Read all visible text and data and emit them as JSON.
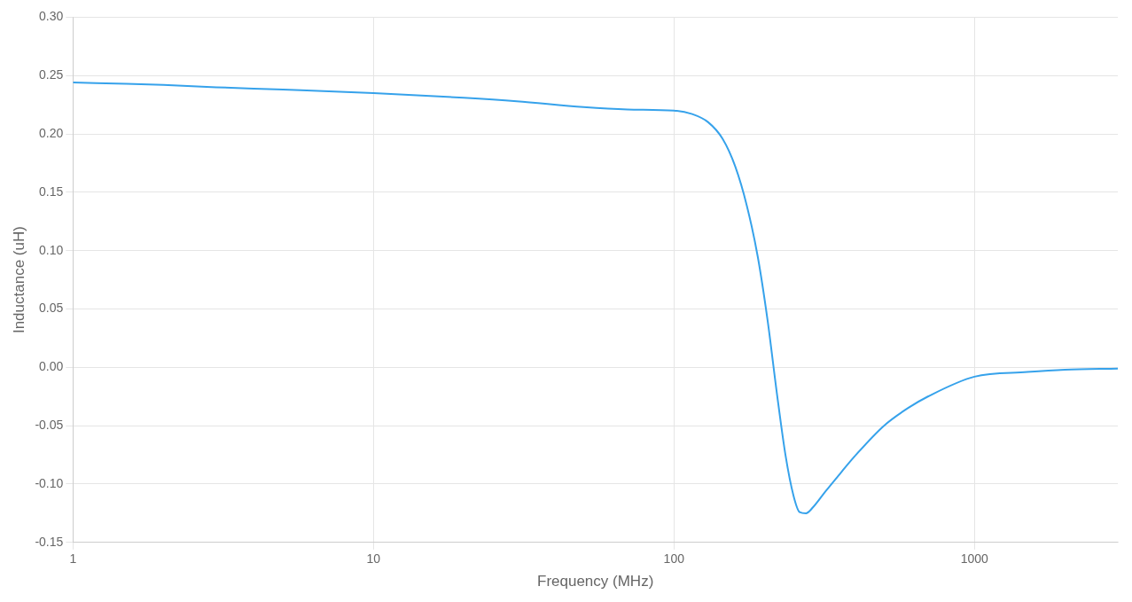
{
  "chart_data": {
    "type": "line",
    "xlabel": "Frequency (MHz)",
    "ylabel": "Inductance (uH)",
    "xlim": [
      1,
      3000
    ],
    "xticks": [
      1,
      10,
      100,
      1000
    ],
    "ylim": [
      -0.15,
      0.3
    ],
    "yticks": [
      {
        "value": -0.15,
        "label": "-0.15"
      },
      {
        "value": -0.1,
        "label": "-0.10"
      },
      {
        "value": -0.05,
        "label": "-0.05"
      },
      {
        "value": 0,
        "label": "0.00"
      },
      {
        "value": 0.05,
        "label": "0.05"
      },
      {
        "value": 0.1,
        "label": "0.10"
      },
      {
        "value": 0.15,
        "label": "0.15"
      },
      {
        "value": 0.2,
        "label": "0.20"
      },
      {
        "value": 0.25,
        "label": "0.25"
      },
      {
        "value": 0.3,
        "label": "0.30"
      }
    ],
    "log": "x",
    "grid": true,
    "marker": "none",
    "line_style": "solid",
    "series": [
      {
        "color": "#36a2eb",
        "x": [
          1,
          1.5,
          2,
          3,
          5,
          10,
          20,
          30,
          50,
          70,
          100,
          115,
          130,
          145,
          160,
          175,
          190,
          205,
          220,
          235,
          250,
          262,
          275,
          290,
          320,
          360,
          400,
          500,
          600,
          700,
          1000,
          1500,
          2000,
          3000
        ],
        "values": [
          0.244,
          0.243,
          0.242,
          0.24,
          0.238,
          0.235,
          0.231,
          0.228,
          0.223,
          0.221,
          0.22,
          0.217,
          0.21,
          0.196,
          0.172,
          0.138,
          0.095,
          0.04,
          -0.022,
          -0.075,
          -0.11,
          -0.124,
          -0.125,
          -0.12,
          -0.106,
          -0.09,
          -0.076,
          -0.05,
          -0.035,
          -0.025,
          -0.008,
          -0.004,
          -0.002,
          -0.001
        ]
      }
    ]
  }
}
